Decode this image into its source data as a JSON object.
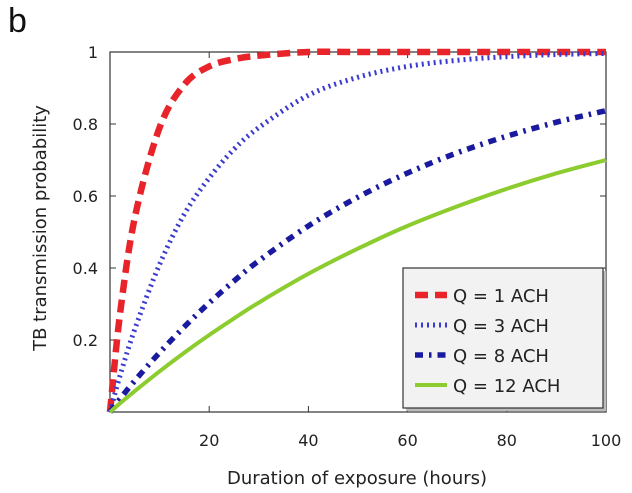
{
  "panel_letter": "b",
  "chart_data": {
    "type": "line",
    "title": "",
    "xlabel": "Duration of exposure (hours)",
    "ylabel": "TB transmission probability",
    "xlim": [
      0,
      100
    ],
    "ylim": [
      0,
      1
    ],
    "xticks": [
      20,
      40,
      60,
      80,
      100
    ],
    "xtick_labels": [
      "20",
      "40",
      "60",
      "80",
      "100"
    ],
    "yticks": [
      0.2,
      0.4,
      0.6,
      0.8,
      1
    ],
    "ytick_labels": [
      "0.2",
      "0.4",
      "0.6",
      "0.8",
      "1"
    ],
    "grid": false,
    "legend_position": "bottom-right",
    "x": [
      0,
      2,
      5,
      10,
      15,
      20,
      25,
      30,
      40,
      50,
      60,
      70,
      80,
      90,
      100
    ],
    "series": [
      {
        "name": "Q = 1 ACH",
        "color": "#e8232a",
        "style": "dashed",
        "values": [
          0.0,
          0.27,
          0.54,
          0.79,
          0.91,
          0.96,
          0.98,
          0.99,
          1.0,
          1.0,
          1.0,
          1.0,
          1.0,
          1.0,
          1.0
        ]
      },
      {
        "name": "Q = 3 ACH",
        "color": "#3a3ad0",
        "style": "dotted",
        "values": [
          0.0,
          0.1,
          0.23,
          0.41,
          0.55,
          0.65,
          0.73,
          0.79,
          0.88,
          0.93,
          0.96,
          0.977,
          0.987,
          0.993,
          0.996
        ]
      },
      {
        "name": "Q = 8 ACH",
        "color": "#1a1aa0",
        "style": "dashdot",
        "values": [
          0.0,
          0.036,
          0.087,
          0.165,
          0.237,
          0.303,
          0.364,
          0.42,
          0.517,
          0.597,
          0.664,
          0.72,
          0.766,
          0.805,
          0.837
        ]
      },
      {
        "name": "Q = 12 ACH",
        "color": "#8ccc2e",
        "style": "solid",
        "values": [
          0.0,
          0.024,
          0.058,
          0.113,
          0.165,
          0.214,
          0.26,
          0.304,
          0.384,
          0.454,
          0.517,
          0.571,
          0.62,
          0.663,
          0.7
        ]
      }
    ]
  }
}
